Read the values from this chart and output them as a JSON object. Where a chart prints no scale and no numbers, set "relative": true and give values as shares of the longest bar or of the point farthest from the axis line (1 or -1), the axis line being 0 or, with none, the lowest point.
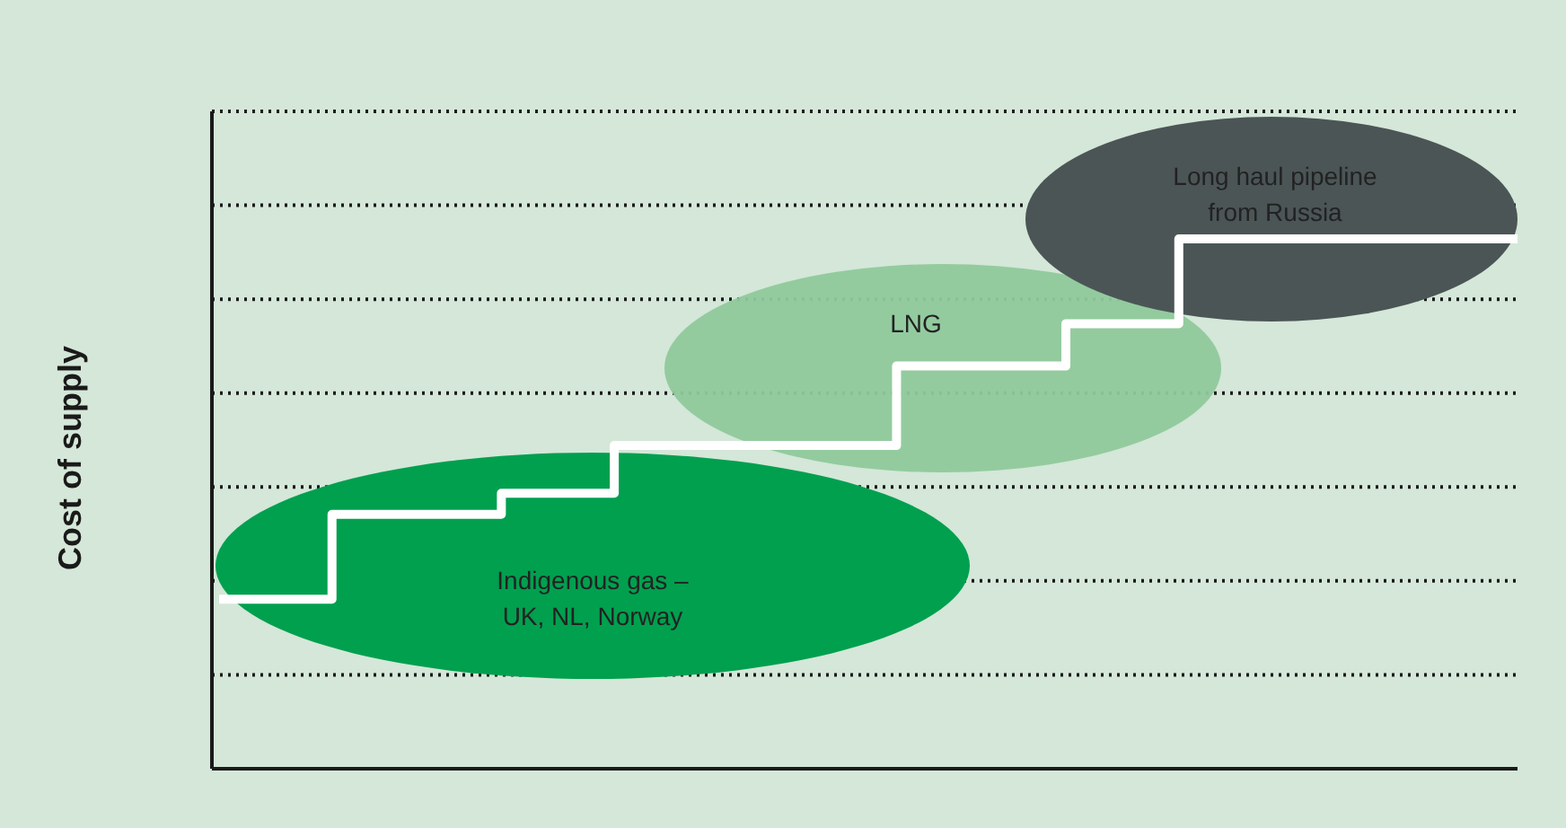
{
  "chart_data": {
    "type": "step",
    "relative": true,
    "ylabel": "Cost of supply",
    "grid": "y",
    "color": "#ffffff",
    "categories": [
      null,
      null,
      null,
      null,
      null,
      null,
      null,
      null,
      null,
      null,
      null,
      null,
      null,
      null,
      null,
      null,
      null,
      null,
      null,
      null,
      null,
      null,
      null,
      null
    ],
    "values": [
      0.32,
      0.32,
      0.48,
      0.48,
      0.48,
      0.52,
      0.52,
      0.61,
      0.61,
      0.61,
      0.61,
      0.61,
      0.76,
      0.76,
      0.76,
      0.84,
      0.84,
      1,
      1,
      1,
      1,
      1,
      1,
      1
    ],
    "annotations": [
      "Indigenous gas –\nUK, NL, Norway",
      "LNG",
      "Long haul pipeline\nfrom Russia"
    ]
  }
}
